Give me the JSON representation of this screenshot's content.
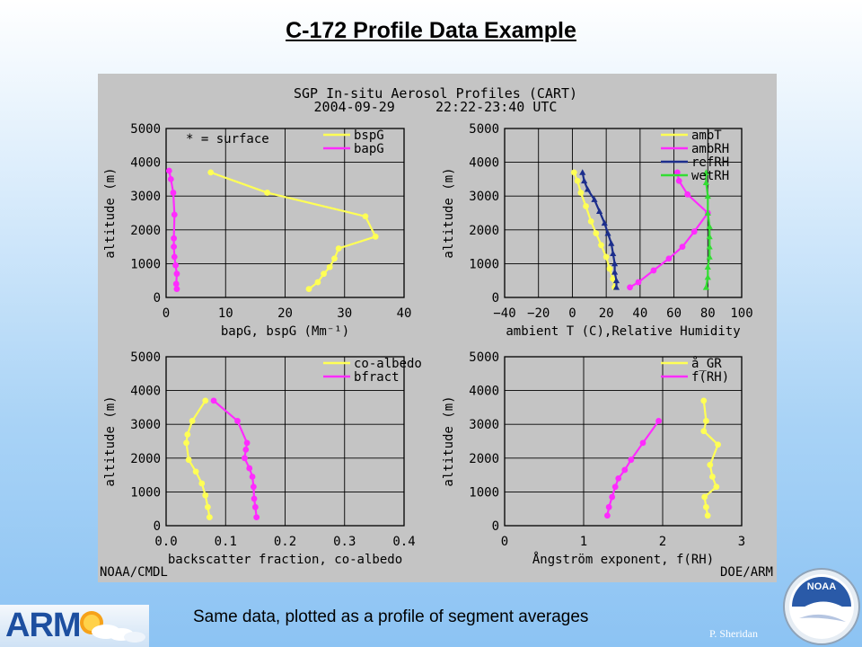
{
  "slide": {
    "title": "C-172 Profile Data Example",
    "caption": "Same data, plotted as a profile of segment averages",
    "author": "P. Sheridan",
    "logo_left": "ARM",
    "logo_right": "NOAA"
  },
  "figure": {
    "title_line1": "SGP In-situ Aerosol Profiles (CART)",
    "title_line2": "2004-09-29     22:22-23:40 UTC",
    "footer_left": "NOAA/CMDL",
    "footer_right": "DOE/ARM",
    "background": "#c4c4c4"
  },
  "colors": {
    "yellow": "#ffff55",
    "magenta": "#ff2bff",
    "navy": "#1c2e8c",
    "green": "#33dd33",
    "arm_blue": "#1d4fa0"
  },
  "chart_data": [
    {
      "type": "line",
      "panel": "top-left",
      "xlabel": "bapG, bspG (Mm⁻¹)",
      "ylabel": "altitude (m)",
      "xlim": [
        0,
        40
      ],
      "ylim": [
        0,
        5000
      ],
      "xticks": [
        0,
        10,
        20,
        30,
        40
      ],
      "yticks": [
        0,
        1000,
        2000,
        3000,
        4000,
        5000
      ],
      "grid": true,
      "legend": "top-right",
      "annotation": "* = surface",
      "series": [
        {
          "name": "bspG",
          "color": "#ffff55",
          "marker": "circle",
          "x": [
            24,
            25.5,
            26.5,
            27.5,
            28.3,
            29,
            35.2,
            33.5,
            17,
            7.5
          ],
          "y": [
            250,
            450,
            700,
            900,
            1150,
            1450,
            1800,
            2400,
            3100,
            3700
          ]
        },
        {
          "name": "bapG",
          "color": "#ff2bff",
          "marker": "circle",
          "x": [
            1.8,
            1.7,
            1.8,
            1.6,
            1.4,
            1.3,
            1.3,
            1.4,
            1.2,
            0.8,
            0.5
          ],
          "y": [
            250,
            400,
            700,
            950,
            1200,
            1500,
            1750,
            2450,
            3100,
            3500,
            3750
          ]
        }
      ]
    },
    {
      "type": "line",
      "panel": "top-right",
      "xlabel": "ambient T (C),Relative Humidity",
      "ylabel": "altitude (m)",
      "xlim": [
        -40,
        100
      ],
      "ylim": [
        0,
        5000
      ],
      "xticks": [
        -40,
        -20,
        0,
        20,
        40,
        60,
        80,
        100
      ],
      "yticks": [
        0,
        1000,
        2000,
        3000,
        4000,
        5000
      ],
      "grid": true,
      "legend": "top-right",
      "series": [
        {
          "name": "ambT",
          "color": "#ffff55",
          "marker": "circle",
          "x": [
            25,
            24,
            22,
            20,
            17,
            14,
            11,
            8,
            5,
            3,
            1
          ],
          "y": [
            300,
            550,
            850,
            1200,
            1550,
            1900,
            2250,
            2700,
            3100,
            3450,
            3700
          ]
        },
        {
          "name": "ambRH",
          "color": "#ff2bff",
          "marker": "circle",
          "x": [
            34,
            39,
            48,
            57,
            65,
            72,
            80,
            68,
            63,
            62
          ],
          "y": [
            300,
            450,
            800,
            1150,
            1500,
            1950,
            2500,
            3050,
            3450,
            3700
          ]
        },
        {
          "name": "refRH",
          "color": "#1c2e8c",
          "marker": "triangle",
          "x": [
            26,
            26,
            25,
            25,
            24,
            23,
            21,
            19,
            16,
            13,
            9,
            7,
            6
          ],
          "y": [
            300,
            500,
            750,
            1000,
            1300,
            1600,
            1900,
            2200,
            2550,
            2900,
            3200,
            3450,
            3700
          ]
        },
        {
          "name": "wetRH",
          "color": "#33dd33",
          "marker": "triangle",
          "x": [
            79,
            80,
            80,
            81,
            81,
            81,
            81,
            80,
            80,
            79,
            79
          ],
          "y": [
            300,
            600,
            900,
            1200,
            1500,
            1800,
            2100,
            2500,
            3000,
            3400,
            3700
          ]
        }
      ]
    },
    {
      "type": "line",
      "panel": "bottom-left",
      "xlabel": "backscatter fraction, co-albedo",
      "ylabel": "altitude (m)",
      "xlim": [
        0.0,
        0.4
      ],
      "ylim": [
        0,
        5000
      ],
      "xticks": [
        0.0,
        0.1,
        0.2,
        0.3,
        0.4
      ],
      "yticks": [
        0,
        1000,
        2000,
        3000,
        4000,
        5000
      ],
      "grid": true,
      "legend": "top-right",
      "series": [
        {
          "name": "co-albedo",
          "color": "#ffff55",
          "marker": "circle",
          "x": [
            0.073,
            0.07,
            0.066,
            0.06,
            0.05,
            0.038,
            0.034,
            0.036,
            0.044,
            0.066
          ],
          "y": [
            250,
            550,
            900,
            1250,
            1600,
            1950,
            2450,
            2700,
            3100,
            3700
          ]
        },
        {
          "name": "bfract",
          "color": "#ff2bff",
          "marker": "circle",
          "x": [
            0.152,
            0.15,
            0.148,
            0.147,
            0.145,
            0.14,
            0.132,
            0.134,
            0.136,
            0.12,
            0.08
          ],
          "y": [
            250,
            550,
            800,
            1150,
            1450,
            1700,
            2000,
            2250,
            2450,
            3100,
            3700
          ]
        }
      ]
    },
    {
      "type": "line",
      "panel": "bottom-right",
      "xlabel": "Ångström exponent, f(RH)",
      "ylabel": "altitude (m)",
      "xlim": [
        0,
        3
      ],
      "ylim": [
        0,
        5000
      ],
      "xticks": [
        0,
        1,
        2,
        3
      ],
      "yticks": [
        0,
        1000,
        2000,
        3000,
        4000,
        5000
      ],
      "grid": true,
      "legend": "top-right",
      "series": [
        {
          "name": "å_GR",
          "color": "#ffff55",
          "marker": "circle",
          "x": [
            2.57,
            2.55,
            2.53,
            2.68,
            2.63,
            2.6,
            2.7,
            2.52,
            2.55,
            2.52
          ],
          "y": [
            300,
            550,
            850,
            1150,
            1450,
            1800,
            2400,
            2800,
            3100,
            3700
          ]
        },
        {
          "name": "f(RH)",
          "color": "#ff2bff",
          "marker": "circle",
          "x": [
            1.3,
            1.32,
            1.36,
            1.4,
            1.44,
            1.52,
            1.6,
            1.75,
            1.95
          ],
          "y": [
            300,
            550,
            850,
            1150,
            1400,
            1650,
            1950,
            2450,
            3100
          ]
        }
      ]
    }
  ]
}
